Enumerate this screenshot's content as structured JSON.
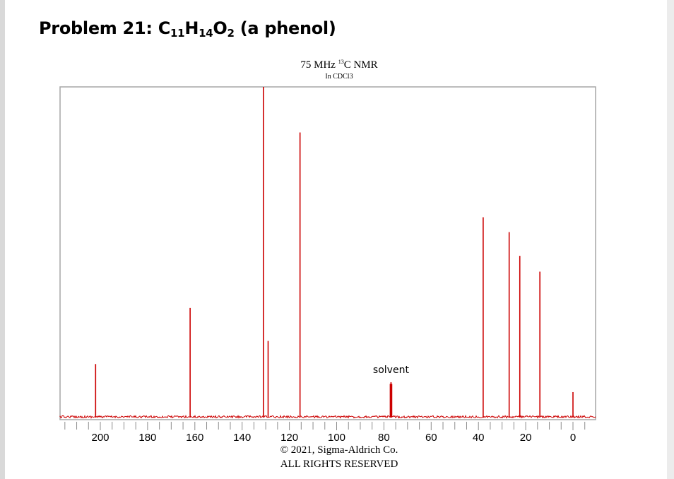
{
  "problem": {
    "prefix": "Problem 21: C",
    "sub1": "11",
    "mid1": "H",
    "sub2": "14",
    "mid2": "O",
    "sub3": "2",
    "suffix": " (a phenol)"
  },
  "chart_data": {
    "type": "line",
    "title_pre": "75 MHz ",
    "title_sup": "13",
    "title_post": "C NMR",
    "subtitle": "In CDCl3",
    "xlabel": "",
    "ylabel": "",
    "x_reversed": true,
    "xlim": [
      218,
      -9
    ],
    "x_ticks": [
      200,
      180,
      160,
      140,
      120,
      100,
      80,
      60,
      40,
      20,
      0
    ],
    "series": [
      {
        "color": "#cc0000",
        "peaks": [
          {
            "x": 202.0,
            "y": 0.16
          },
          {
            "x": 162.0,
            "y": 0.33
          },
          {
            "x": 131.0,
            "y": 1.0
          },
          {
            "x": 129.0,
            "y": 0.23
          },
          {
            "x": 115.5,
            "y": 0.862
          },
          {
            "x": 77.3,
            "y": 0.1
          },
          {
            "x": 77.0,
            "y": 0.105
          },
          {
            "x": 76.7,
            "y": 0.1
          },
          {
            "x": 38.0,
            "y": 0.605
          },
          {
            "x": 27.0,
            "y": 0.56
          },
          {
            "x": 22.5,
            "y": 0.488
          },
          {
            "x": 14.0,
            "y": 0.44
          },
          {
            "x": 0.0,
            "y": 0.075
          }
        ]
      }
    ],
    "annotations": [
      {
        "text": "solvent",
        "x": 77
      }
    ],
    "grid": false
  },
  "copyright": {
    "line1": "© 2021, Sigma-Aldrich Co.",
    "line2": "ALL RIGHTS RESERVED"
  }
}
